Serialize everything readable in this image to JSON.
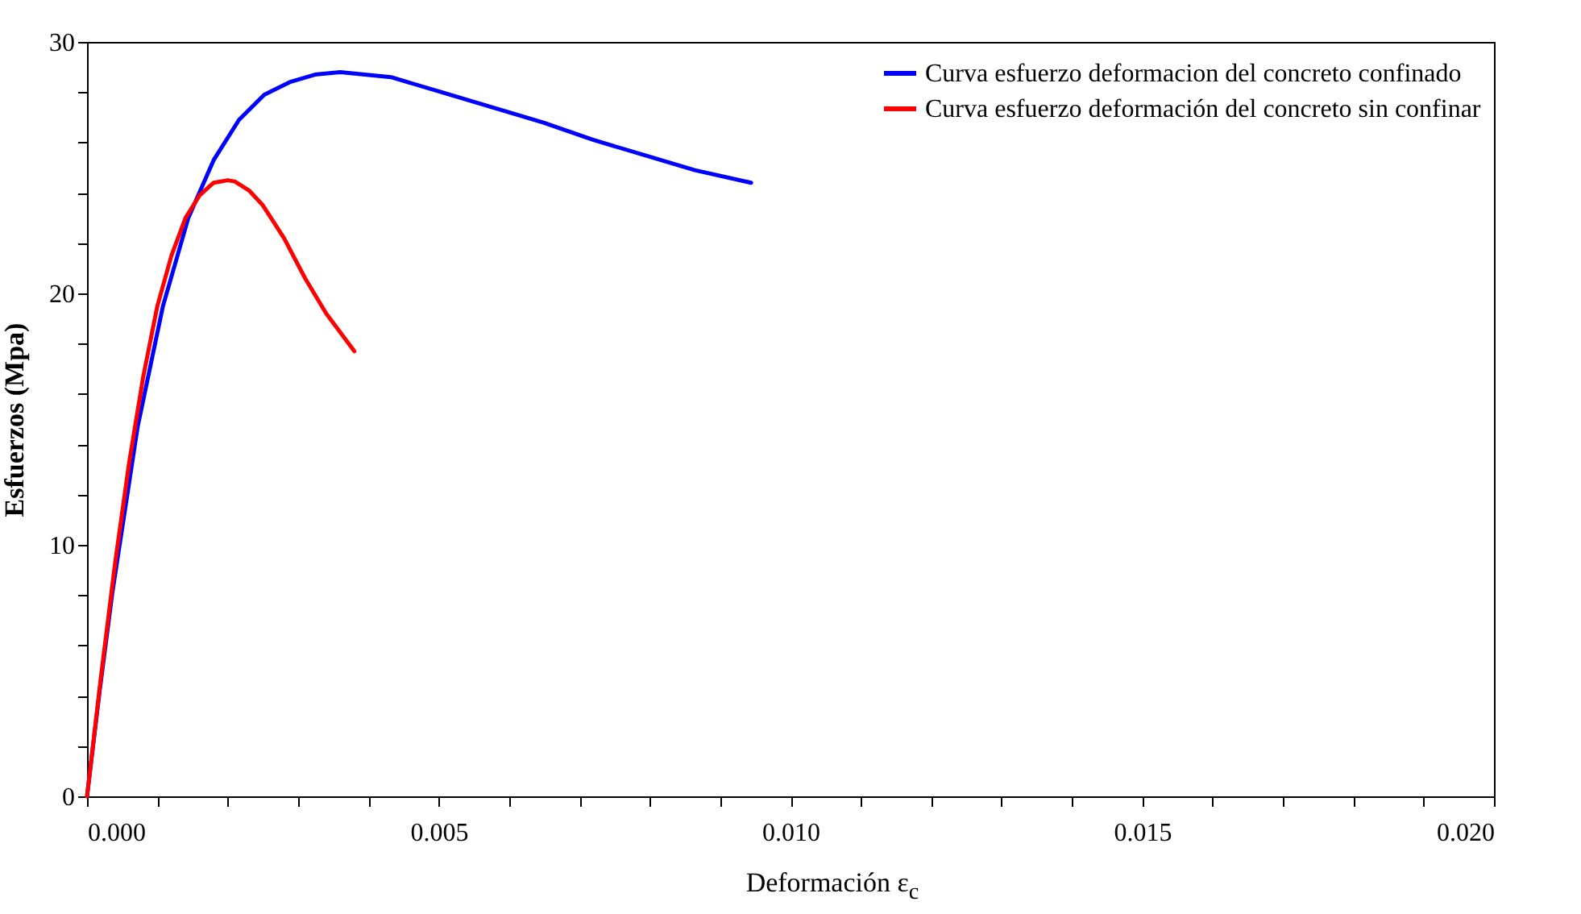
{
  "chart_data": {
    "type": "line",
    "xlabel": "Deformación ε$_{c}$",
    "ylabel": "Esfuerzos (Mpa)",
    "xlim": [
      0,
      0.02
    ],
    "ylim": [
      0,
      30
    ],
    "xticks": [
      {
        "value": 0,
        "label": "0.000"
      },
      {
        "value": 0.001,
        "label": null
      },
      {
        "value": 0.002,
        "label": null
      },
      {
        "value": 0.003,
        "label": null
      },
      {
        "value": 0.004,
        "label": null
      },
      {
        "value": 0.005,
        "label": "0.005"
      },
      {
        "value": 0.006,
        "label": null
      },
      {
        "value": 0.007,
        "label": null
      },
      {
        "value": 0.008,
        "label": null
      },
      {
        "value": 0.009,
        "label": null
      },
      {
        "value": 0.01,
        "label": "0.010"
      },
      {
        "value": 0.011,
        "label": null
      },
      {
        "value": 0.012,
        "label": null
      },
      {
        "value": 0.013,
        "label": null
      },
      {
        "value": 0.014,
        "label": null
      },
      {
        "value": 0.015,
        "label": "0.015"
      },
      {
        "value": 0.016,
        "label": null
      },
      {
        "value": 0.017,
        "label": null
      },
      {
        "value": 0.018,
        "label": null
      },
      {
        "value": 0.019,
        "label": null
      },
      {
        "value": 0.02,
        "label": "0.020"
      }
    ],
    "yticks": [
      0,
      {
        "value": 2,
        "label": null
      },
      {
        "value": 4,
        "label": null
      },
      {
        "value": 6,
        "label": null
      },
      {
        "value": 8,
        "label": null
      },
      10,
      {
        "value": 12,
        "label": null
      },
      {
        "value": 14,
        "label": null
      },
      {
        "value": 16,
        "label": null
      },
      {
        "value": 18,
        "label": null
      },
      20,
      {
        "value": 22,
        "label": null
      },
      {
        "value": 24,
        "label": null
      },
      {
        "value": 26,
        "label": null
      },
      {
        "value": 28,
        "label": null
      },
      30
    ],
    "grid": false,
    "legend": "top right",
    "marker": "none",
    "line_style": "solid",
    "series": [
      {
        "name": "Curva esfuerzo deformacion del concreto confinado",
        "color": "#0000ff",
        "x": [
          0,
          0.00018,
          0.00036,
          0.00072,
          0.00108,
          0.00144,
          0.0018,
          0.00216,
          0.00252,
          0.00288,
          0.00324,
          0.0036,
          0.00432,
          0.00504,
          0.00576,
          0.00648,
          0.0072,
          0.00792,
          0.00864,
          0.00944
        ],
        "values": [
          0,
          4.2,
          8.1,
          14.7,
          19.5,
          23.0,
          25.3,
          26.9,
          27.9,
          28.4,
          28.7,
          28.8,
          28.6,
          28.0,
          27.4,
          26.8,
          26.1,
          25.5,
          24.9,
          24.4
        ]
      },
      {
        "name": "Curva esfuerzo deformación del concreto sin confinar",
        "color": "#ff0000",
        "x": [
          0,
          0.0001,
          0.0002,
          0.0004,
          0.0006,
          0.0008,
          0.001,
          0.0012,
          0.0014,
          0.0016,
          0.0018,
          0.002,
          0.0021,
          0.0023,
          0.0025,
          0.0028,
          0.0031,
          0.0034,
          0.0038
        ],
        "values": [
          0,
          2.4,
          4.8,
          9.3,
          13.3,
          16.7,
          19.5,
          21.5,
          23.0,
          23.9,
          24.4,
          24.5,
          24.45,
          24.1,
          23.5,
          22.2,
          20.6,
          19.2,
          17.7
        ]
      }
    ]
  }
}
